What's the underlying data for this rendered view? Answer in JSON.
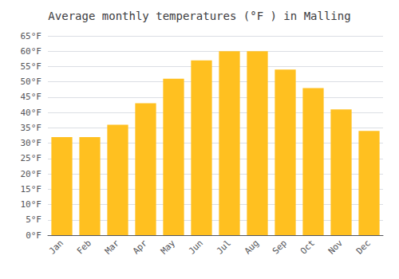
{
  "chart_data": {
    "type": "bar",
    "title": "Average monthly temperatures (°F ) in Malling",
    "categories": [
      "Jan",
      "Feb",
      "Mar",
      "Apr",
      "May",
      "Jun",
      "Jul",
      "Aug",
      "Sep",
      "Oct",
      "Nov",
      "Dec"
    ],
    "values": [
      32,
      32,
      36,
      43,
      51,
      57,
      60,
      60,
      54,
      48,
      41,
      34
    ],
    "color": "#FFC020",
    "ylim": [
      0,
      65
    ],
    "yticks": [
      {
        "value": 0,
        "label": "0°F"
      },
      {
        "value": 5,
        "label": "5°F"
      },
      {
        "value": 10,
        "label": "10°F"
      },
      {
        "value": 15,
        "label": "15°F"
      },
      {
        "value": 20,
        "label": "20°F"
      },
      {
        "value": 25,
        "label": "25°F"
      },
      {
        "value": 30,
        "label": "30°F"
      },
      {
        "value": 35,
        "label": "35°F"
      },
      {
        "value": 40,
        "label": "40°F"
      },
      {
        "value": 45,
        "label": "45°F"
      },
      {
        "value": 50,
        "label": "50°F"
      },
      {
        "value": 55,
        "label": "55°F"
      },
      {
        "value": 60,
        "label": "60°F"
      },
      {
        "value": 65,
        "label": "65°F"
      }
    ],
    "grid": true
  }
}
